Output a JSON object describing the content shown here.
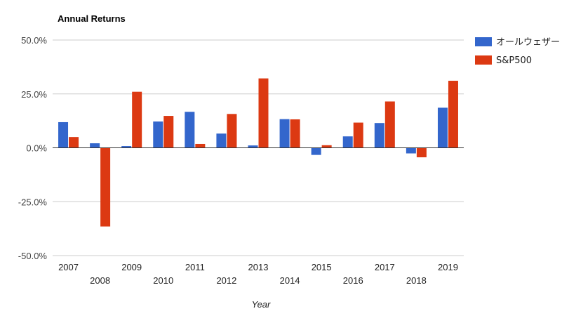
{
  "chart_data": {
    "type": "bar",
    "title": "Annual Returns",
    "xlabel": "Year",
    "ylabel": "",
    "ylim": [
      -50,
      50
    ],
    "yticks": [
      50,
      25,
      0,
      -25,
      -50
    ],
    "ytick_labels": [
      "50.0%",
      "25.0%",
      "0.0%",
      "-25.0%",
      "-50.0%"
    ],
    "categories": [
      "2007",
      "2008",
      "2009",
      "2010",
      "2011",
      "2012",
      "2013",
      "2014",
      "2015",
      "2016",
      "2017",
      "2018",
      "2019"
    ],
    "series": [
      {
        "name": "オールウェザー",
        "color": "#3366cc",
        "values": [
          11.9,
          2.1,
          0.8,
          12.2,
          16.7,
          6.6,
          1.1,
          13.3,
          -3.3,
          5.3,
          11.5,
          -2.6,
          18.6
        ]
      },
      {
        "name": "S&P500",
        "color": "#dc3912",
        "values": [
          5.0,
          -36.5,
          26.0,
          14.8,
          1.8,
          15.7,
          32.2,
          13.2,
          1.2,
          11.7,
          21.5,
          -4.4,
          31.1
        ]
      }
    ],
    "grid": true,
    "legend_position": "right"
  }
}
